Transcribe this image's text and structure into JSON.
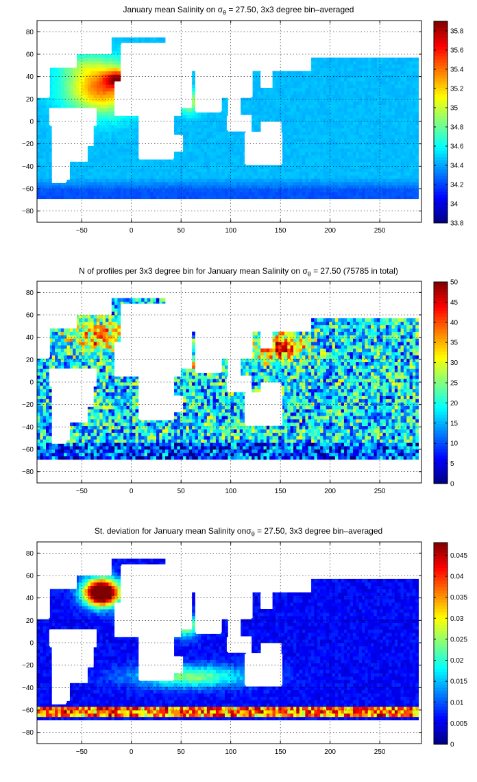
{
  "chart_data": [
    {
      "type": "heatmap",
      "title_pre": "January mean Salinity on ",
      "title_sym": "σ",
      "title_sub": "θ",
      "title_post": " = 27.50, 3x3 degree bin–averaged",
      "xlim": [
        -95,
        292
      ],
      "ylim": [
        -90,
        90
      ],
      "xticks": [
        -50,
        0,
        50,
        100,
        150,
        200,
        250
      ],
      "yticks": [
        80,
        60,
        40,
        20,
        0,
        -20,
        -40,
        -60,
        -80
      ],
      "clim": [
        33.8,
        35.9
      ],
      "cbar_ticks": [
        "35.8",
        "35.6",
        "35.4",
        "35.2",
        "35",
        "34.8",
        "34.6",
        "34.4",
        "34.2",
        "34",
        "33.8"
      ],
      "cbar_tick_values": [
        35.8,
        35.6,
        35.4,
        35.2,
        35.0,
        34.8,
        34.6,
        34.4,
        34.2,
        34.0,
        33.8
      ],
      "grid": true,
      "field": "salinity"
    },
    {
      "type": "heatmap",
      "title_pre": "N of profiles per 3x3 degree bin for January mean Salinity on ",
      "title_sym": "σ",
      "title_sub": "θ",
      "title_post": " = 27.50 (75785 in total)",
      "xlim": [
        -95,
        292
      ],
      "ylim": [
        -90,
        90
      ],
      "xticks": [
        -50,
        0,
        50,
        100,
        150,
        200,
        250
      ],
      "yticks": [
        80,
        60,
        40,
        20,
        0,
        -20,
        -40,
        -60,
        -80
      ],
      "clim": [
        0,
        50
      ],
      "cbar_ticks": [
        "50",
        "45",
        "40",
        "35",
        "30",
        "25",
        "20",
        "15",
        "10",
        "5",
        "0"
      ],
      "cbar_tick_values": [
        50,
        45,
        40,
        35,
        30,
        25,
        20,
        15,
        10,
        5,
        0
      ],
      "grid": true,
      "field": "count"
    },
    {
      "type": "heatmap",
      "title_pre": "St. deviation for January mean Salinity on",
      "title_sym": "σ",
      "title_sub": "θ",
      "title_post": " = 27.50, 3x3 degree bin–averaged",
      "xlim": [
        -95,
        292
      ],
      "ylim": [
        -90,
        90
      ],
      "xticks": [
        -50,
        0,
        50,
        100,
        150,
        200,
        250
      ],
      "yticks": [
        80,
        60,
        40,
        20,
        0,
        -20,
        -40,
        -60,
        -80
      ],
      "clim": [
        0,
        0.048
      ],
      "cbar_ticks": [
        "0.045",
        "0.04",
        "0.035",
        "0.03",
        "0.025",
        "0.02",
        "0.015",
        "0.01",
        "0.005",
        "0"
      ],
      "cbar_tick_values": [
        0.045,
        0.04,
        0.035,
        0.03,
        0.025,
        0.02,
        0.015,
        0.01,
        0.005,
        0
      ],
      "grid": true,
      "field": "stdev"
    }
  ]
}
